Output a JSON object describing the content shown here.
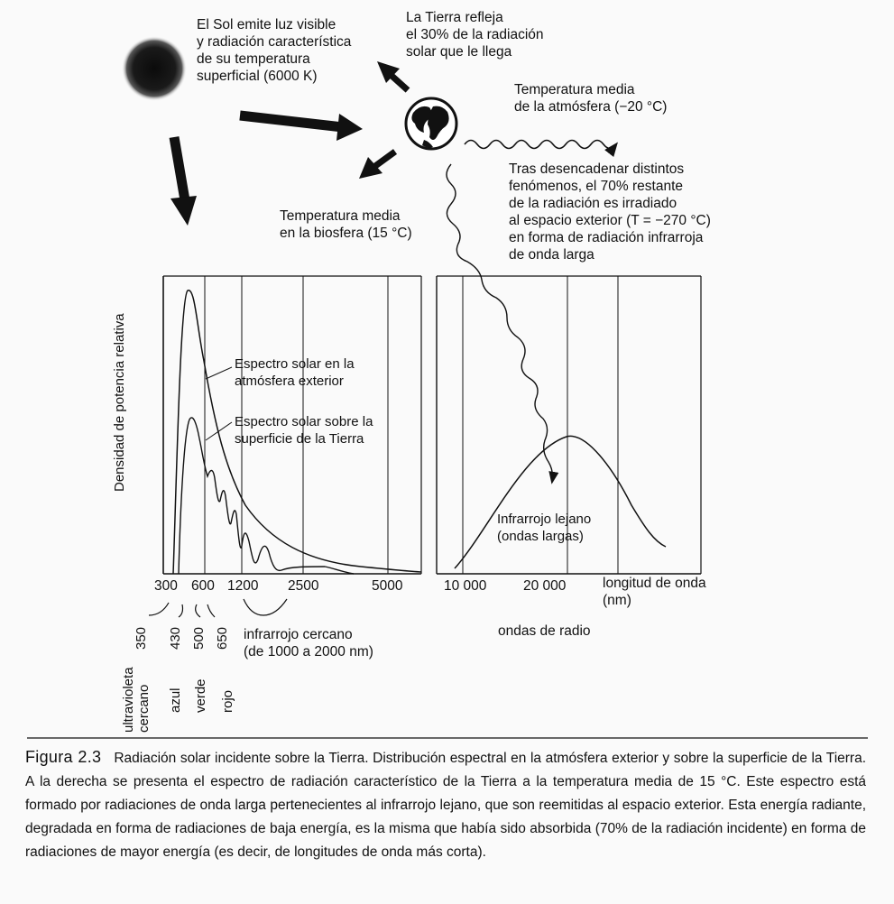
{
  "top_notes": {
    "sun_text": "El Sol emite luz visible\ny radiación característica\nde su temperatura\nsuperficial (6000 K)",
    "earth_reflects": "La Tierra refleja\nel 30% de la radiación\nsolar que le llega",
    "atmosphere_temp": "Temperatura media\nde la atmósfera (−20 °C)",
    "biosphere_temp": "Temperatura media\nen la biosfera (15 °C)",
    "infrared_text": "Tras desencadenar distintos\nfenómenos, el 70% restante\nde la radiación es irradiado\nal espacio exterior (T = −270 °C)\nen forma de radiación infrarroja\nde onda larga"
  },
  "chart": {
    "ylabel": "Densidad de potencia relativa",
    "left_x_ticks": [
      "300",
      "600",
      "1200",
      "2500",
      "5000"
    ],
    "right_x_ticks": [
      "10 000",
      "20 000"
    ],
    "xlabel": "longitud de onda\n(nm)",
    "curve_outer": "Espectro solar en la\natmósfera exterior",
    "curve_surface": "Espectro solar sobre la\nsuperficie de la Tierra",
    "curve_far_ir": "Infrarrojo lejano\n(ondas largas)",
    "radio_waves": "ondas de radio",
    "band_values": [
      "350",
      "430",
      "500",
      "650"
    ],
    "band_names": [
      "ultravioleta\ncercano",
      "azul",
      "verde",
      "rojo"
    ],
    "near_ir": "infrarrojo cercano\n(de 1000 a 2000 nm)"
  },
  "caption": {
    "figure_label": "Figura 2.3",
    "text": "Radiación solar incidente sobre la Tierra. Distribución espectral en la atmósfera exterior y sobre la superficie de la Tierra. A la derecha se presenta el espectro de radiación característico de la Tierra a la temperatura media de 15 °C. Este espectro está formado por radiaciones de onda larga pertenecientes al infrarrojo lejano, que son reemitidas al espacio exterior. Esta energía radiante, degradada en forma de radiaciones de baja energía, es la misma que había sido absorbida (70% de la radiación incidente) en forma de radiaciones de mayor energía (es decir, de longitudes de onda más corta)."
  }
}
